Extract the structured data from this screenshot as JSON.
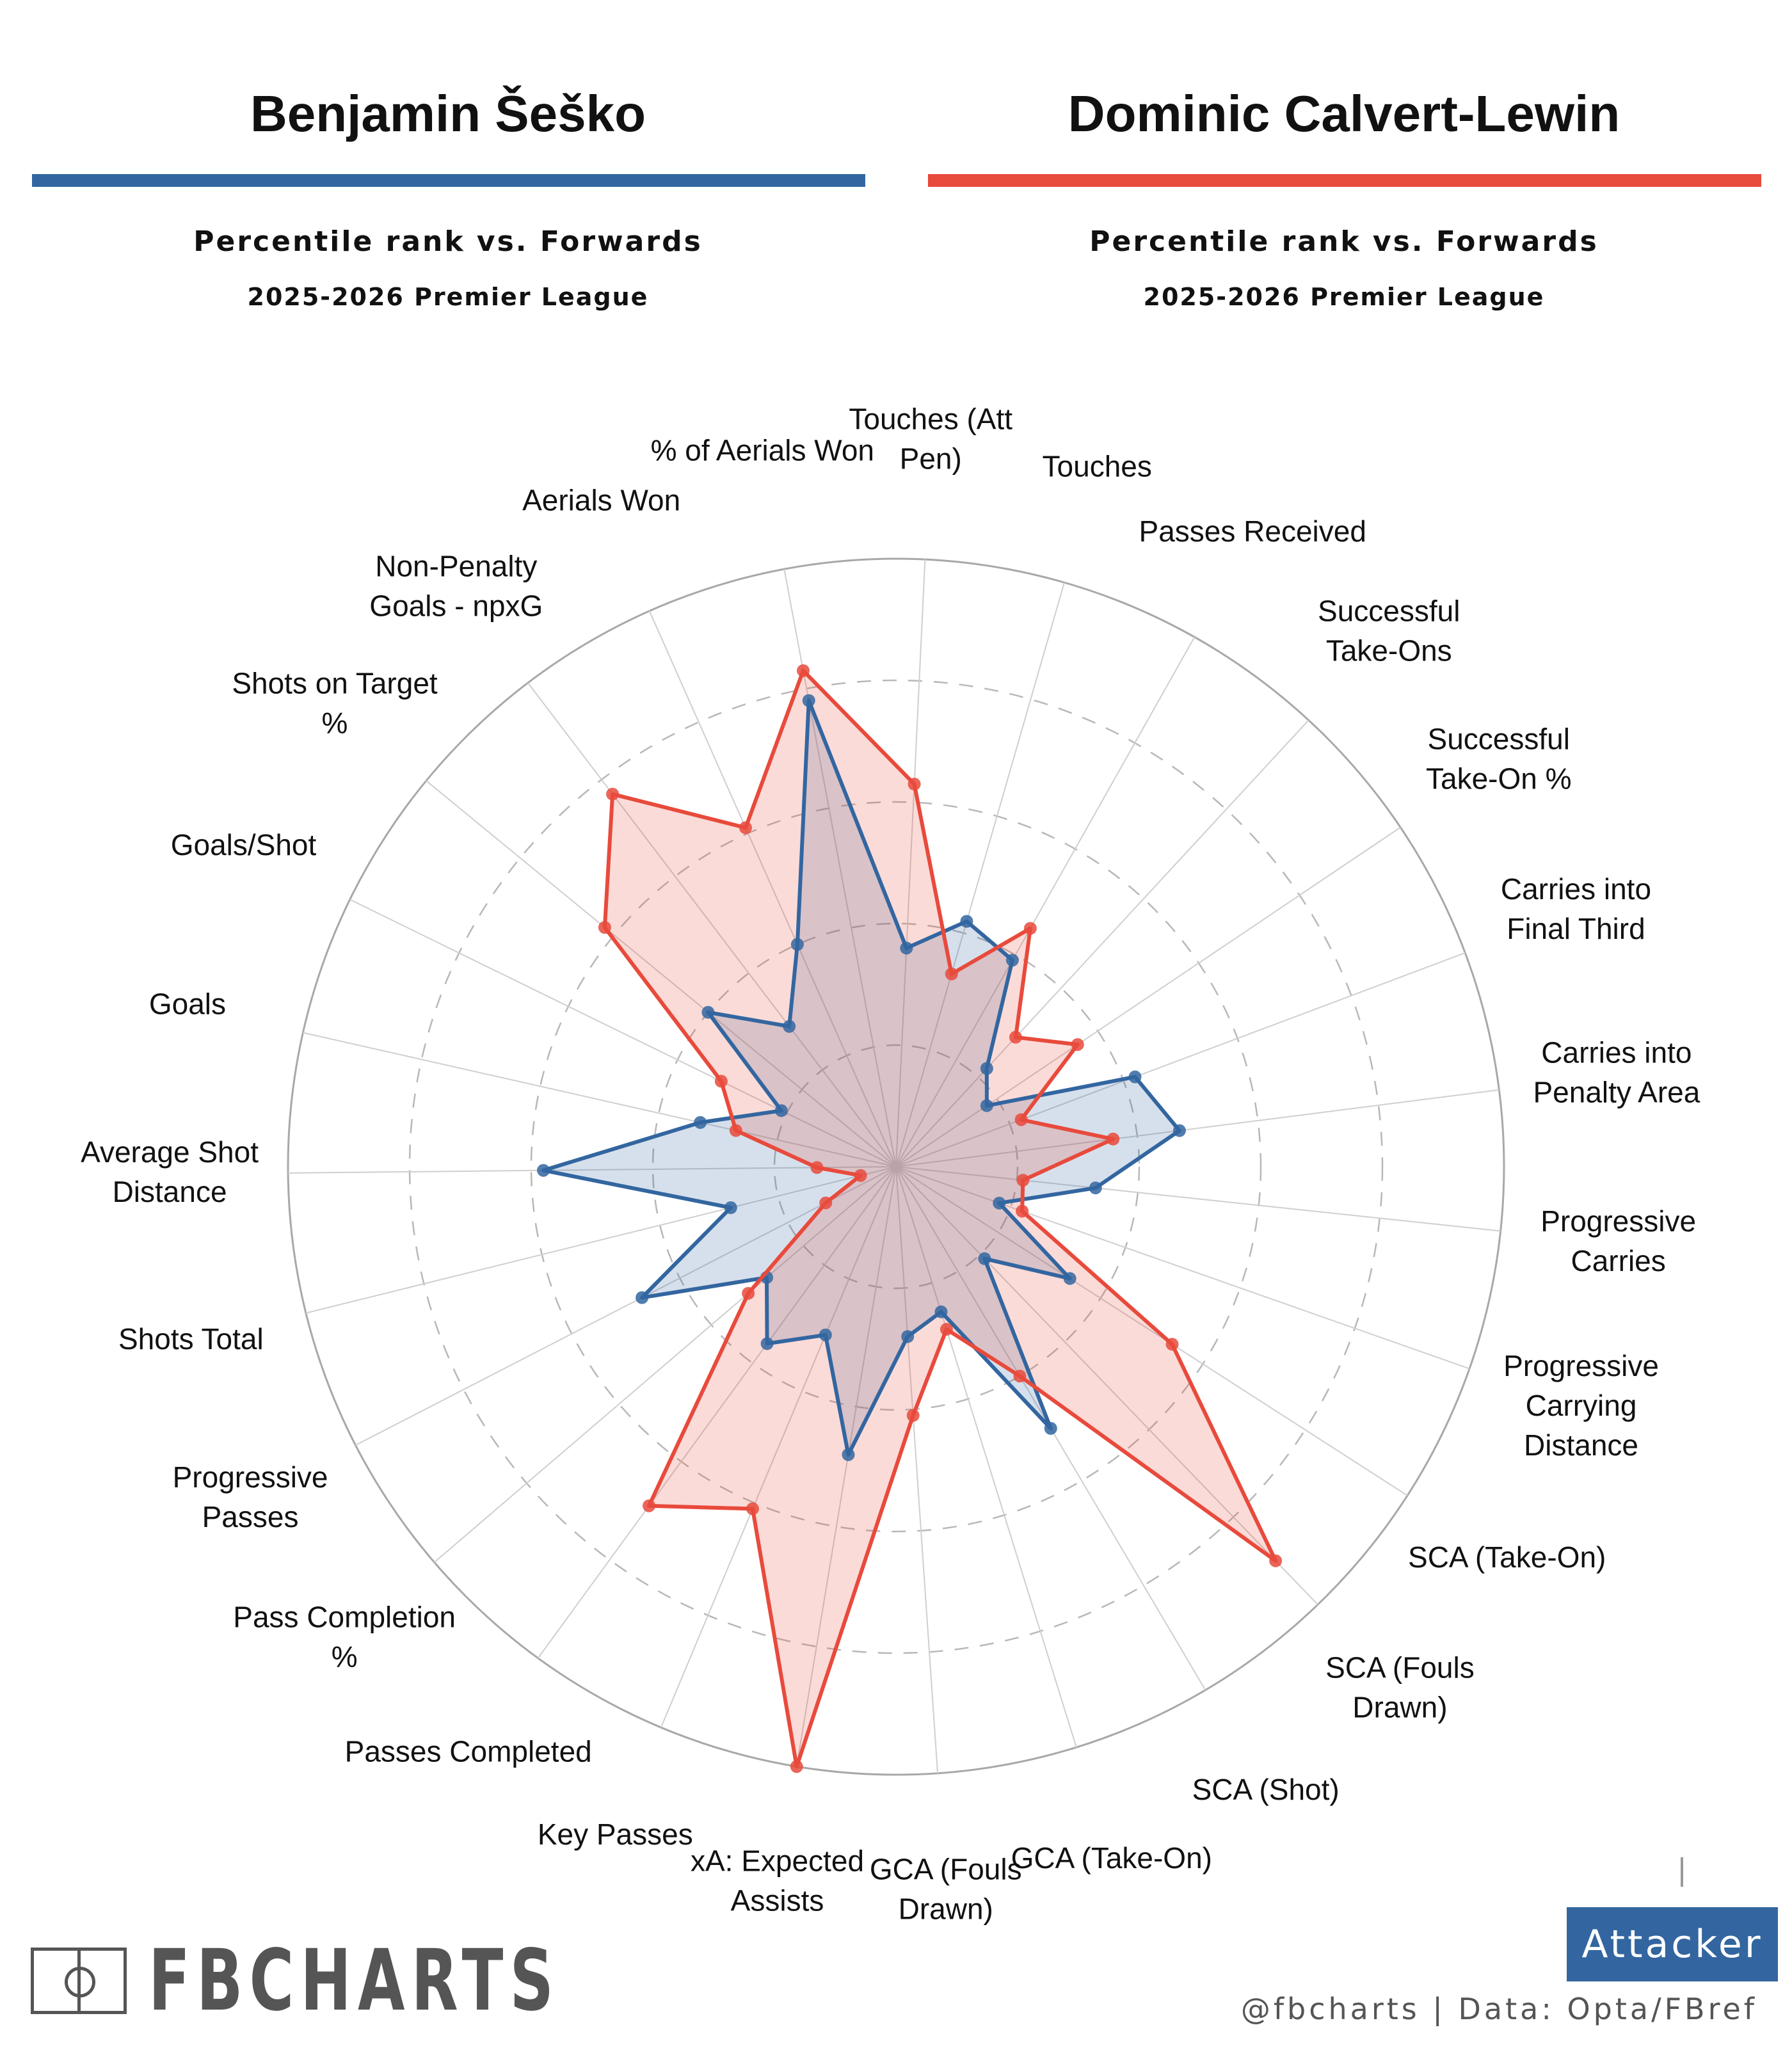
{
  "colors": {
    "player1": "#3366a0",
    "player2": "#e84a3c",
    "grid": "#bdbdbd"
  },
  "player1": {
    "name": "Benjamin Šeško",
    "subtitle": "Percentile rank vs. Forwards",
    "season": "2025-2026 Premier League"
  },
  "player2": {
    "name": "Dominic Calvert-Lewin",
    "subtitle": "Percentile rank vs. Forwards",
    "season": "2025-2026 Premier League"
  },
  "chart_data": {
    "type": "radar",
    "scale": [
      0,
      100
    ],
    "rings": [
      20,
      40,
      60,
      80,
      100
    ],
    "categories": [
      "Touches (Att Pen)",
      "Touches",
      "Passes Received",
      "Successful Take-Ons",
      "Successful Take-On %",
      "Carries into Final Third",
      "Carries into Penalty Area",
      "Progressive Carries",
      "Progressive Carrying Distance",
      "SCA (Take-On)",
      "SCA (Fouls Drawn)",
      "SCA (Shot)",
      "GCA (Take-On)",
      "GCA (Fouls Drawn)",
      "xA: Expected Assists",
      "Key Passes",
      "Passes Completed",
      "Pass Completion %",
      "Progressive Passes",
      "Shots Total",
      "Average Shot Distance",
      "Goals",
      "Goals/Shot",
      "Shots on Target %",
      "Non-Penalty Goals - npxG",
      "Aerials Won",
      "% of Aerials Won"
    ],
    "series": [
      {
        "name": "Benjamin Šeško",
        "values": [
          36,
          42,
          39,
          22,
          18,
          42,
          47,
          33,
          18,
          34,
          21,
          50,
          25,
          28,
          48,
          30,
          36,
          28,
          47,
          28,
          58,
          33,
          21,
          40,
          29,
          40,
          78
        ]
      },
      {
        "name": "Dominic Calvert-Lewin",
        "values": [
          63,
          33,
          45,
          29,
          36,
          22,
          36,
          21,
          22,
          54,
          90,
          40,
          28,
          41,
          100,
          61,
          69,
          32,
          13,
          6,
          13,
          27,
          32,
          62,
          77,
          61,
          83
        ]
      }
    ]
  },
  "footer": {
    "logo_text": "FBCHARTS",
    "badge": "Attacker",
    "credit": "@fbcharts | Data: Opta/FBref"
  }
}
